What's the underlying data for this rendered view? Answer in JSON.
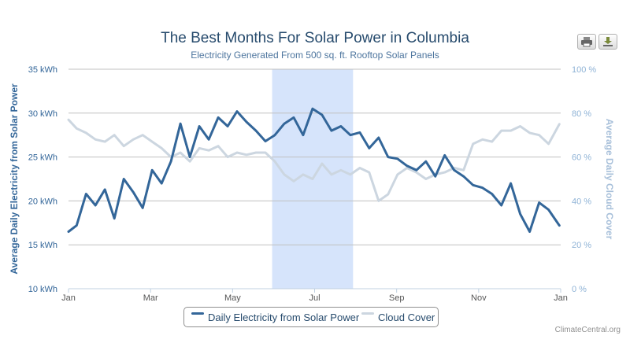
{
  "header": {
    "title": "The Best Months For Solar Power in Columbia",
    "subtitle": "Electricity Generated From 500 sq. ft. Rooftop Solar Panels"
  },
  "toolbar": {
    "print_icon": "printer-icon",
    "download_icon": "download-icon"
  },
  "legend": {
    "electricity_label": "Daily Electricity from Solar Power",
    "cloud_label": "Cloud Cover"
  },
  "credit": "ClimateCentral.org",
  "colors": {
    "electricity": "#336699",
    "cloud": "#ccd6e0",
    "highlight": "#d6e4fb",
    "grid": "#c0c0c0"
  },
  "chart_data": {
    "type": "line",
    "title": "The Best Months For Solar Power in Columbia",
    "subtitle": "Electricity Generated From 500 sq. ft. Rooftop Solar Panels",
    "xlabel": "",
    "ylabel": "Average Daily Electricity from Solar Power",
    "y2label": "Average Daily Cloud Cover",
    "xlim": [
      "Jan 1",
      "Jan 1 (next year)"
    ],
    "ylim": [
      10,
      35
    ],
    "y2lim": [
      0,
      100
    ],
    "x_ticks": [
      "Jan",
      "Mar",
      "May",
      "Jul",
      "Sep",
      "Nov",
      "Jan"
    ],
    "y_ticks": [
      "10 kWh",
      "15 kWh",
      "20 kWh",
      "25 kWh",
      "30 kWh",
      "35 kWh"
    ],
    "y2_ticks": [
      "0 %",
      "20 %",
      "40 %",
      "60 %",
      "80 %",
      "100 %"
    ],
    "highlight_band": [
      "Jun 1",
      "Jul 31"
    ],
    "grid": true,
    "legend_position": "bottom-center",
    "series": [
      {
        "name": "Daily Electricity from Solar Power",
        "axis": "left",
        "unit": "kWh",
        "x": [
          "Jan 1",
          "Jan 7",
          "Jan 14",
          "Jan 21",
          "Jan 28",
          "Feb 4",
          "Feb 11",
          "Feb 18",
          "Feb 25",
          "Mar 4",
          "Mar 11",
          "Mar 18",
          "Mar 25",
          "Apr 1",
          "Apr 8",
          "Apr 15",
          "Apr 22",
          "Apr 29",
          "May 6",
          "May 13",
          "May 20",
          "May 27",
          "Jun 3",
          "Jun 10",
          "Jun 17",
          "Jun 24",
          "Jul 1",
          "Jul 8",
          "Jul 15",
          "Jul 22",
          "Jul 29",
          "Aug 5",
          "Aug 12",
          "Aug 19",
          "Aug 26",
          "Sep 2",
          "Sep 9",
          "Sep 16",
          "Sep 23",
          "Sep 30",
          "Oct 7",
          "Oct 14",
          "Oct 21",
          "Oct 28",
          "Nov 4",
          "Nov 11",
          "Nov 18",
          "Nov 25",
          "Dec 2",
          "Dec 9",
          "Dec 16",
          "Dec 23",
          "Dec 31"
        ],
        "values": [
          16.5,
          17.2,
          20.8,
          19.5,
          21.3,
          18.0,
          22.5,
          21.0,
          19.2,
          23.5,
          22.0,
          24.5,
          28.8,
          25.0,
          28.5,
          27.0,
          29.5,
          28.5,
          30.2,
          29.0,
          28.0,
          26.8,
          27.5,
          28.8,
          29.5,
          27.5,
          30.5,
          29.8,
          28.0,
          28.5,
          27.5,
          27.8,
          26.0,
          27.2,
          25.0,
          24.8,
          24.0,
          23.5,
          24.5,
          22.8,
          25.2,
          23.5,
          22.8,
          21.8,
          21.5,
          20.8,
          19.5,
          22.0,
          18.5,
          16.5,
          19.8,
          19.0,
          17.2
        ]
      },
      {
        "name": "Cloud Cover",
        "axis": "right",
        "unit": "%",
        "x": [
          "Jan 1",
          "Jan 7",
          "Jan 14",
          "Jan 21",
          "Jan 28",
          "Feb 4",
          "Feb 11",
          "Feb 18",
          "Feb 25",
          "Mar 4",
          "Mar 11",
          "Mar 18",
          "Mar 25",
          "Apr 1",
          "Apr 8",
          "Apr 15",
          "Apr 22",
          "Apr 29",
          "May 6",
          "May 13",
          "May 20",
          "May 27",
          "Jun 3",
          "Jun 10",
          "Jun 17",
          "Jun 24",
          "Jul 1",
          "Jul 8",
          "Jul 15",
          "Jul 22",
          "Jul 29",
          "Aug 5",
          "Aug 12",
          "Aug 19",
          "Aug 26",
          "Sep 2",
          "Sep 9",
          "Sep 16",
          "Sep 23",
          "Sep 30",
          "Oct 7",
          "Oct 14",
          "Oct 21",
          "Oct 28",
          "Nov 4",
          "Nov 11",
          "Nov 18",
          "Nov 25",
          "Dec 2",
          "Dec 9",
          "Dec 16",
          "Dec 23",
          "Dec 31"
        ],
        "values": [
          77,
          73,
          71,
          68,
          67,
          70,
          65,
          68,
          70,
          67,
          64,
          60,
          62,
          58,
          64,
          63,
          65,
          60,
          62,
          61,
          62,
          62,
          58,
          52,
          49,
          52,
          50,
          57,
          52,
          54,
          52,
          55,
          53,
          40,
          43,
          52,
          55,
          53,
          50,
          52,
          53,
          55,
          54,
          66,
          68,
          67,
          72,
          72,
          74,
          71,
          70,
          66,
          75
        ]
      }
    ]
  }
}
